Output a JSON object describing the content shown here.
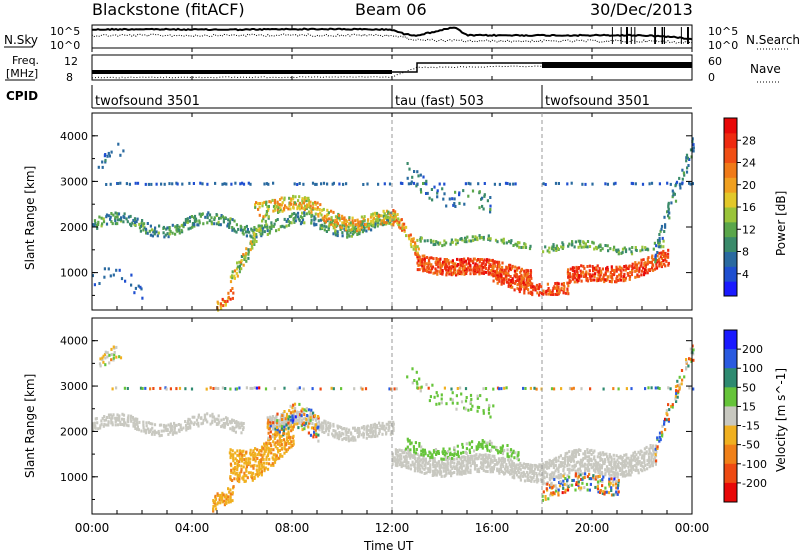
{
  "header": {
    "station": "Blackstone (fitACF)",
    "beam": "Beam 06",
    "date": "30/Dec/2013"
  },
  "left_labels": {
    "nsky": "N.Sky",
    "freq_line1": "Freq.",
    "freq_line2": "[MHz]",
    "cpid": "CPID"
  },
  "right_labels": {
    "nsearch": "N.Search",
    "nave": "Nave"
  },
  "noise_panel": {
    "left_ticks": [
      "10^5",
      "10^0"
    ],
    "right_ticks": [
      "10^5",
      "10^0"
    ]
  },
  "freq_panel": {
    "left_ticks": [
      "12",
      "8"
    ],
    "right_ticks": [
      "60",
      "0"
    ]
  },
  "cpid_segments": [
    {
      "label": "twofsound 3501",
      "start_h": 0,
      "end_h": 12
    },
    {
      "label": "tau (fast) 503",
      "start_h": 12,
      "end_h": 18
    },
    {
      "label": "twofsound 3501",
      "start_h": 18,
      "end_h": 24
    }
  ],
  "axes": {
    "ylabel": "Slant Range [km]",
    "xlabel": "Time UT",
    "y_ticks": [
      "1000",
      "2000",
      "3000",
      "4000"
    ],
    "x_ticks": [
      "00:00",
      "04:00",
      "08:00",
      "12:00",
      "16:00",
      "20:00",
      "00:00"
    ]
  },
  "power_colorbar": {
    "label": "Power [dB]",
    "ticks": [
      "4",
      "8",
      "12",
      "16",
      "20",
      "24",
      "28"
    ],
    "colors": [
      "#1a1aff",
      "#1f4fd0",
      "#2a6aa0",
      "#3a8a6a",
      "#5aa64a",
      "#9ac43a",
      "#e2c82a",
      "#f0a020",
      "#f07a18",
      "#f04e14",
      "#ee2a10",
      "#e80808"
    ]
  },
  "velocity_colorbar": {
    "label": "Velocity [m s^-1]",
    "ticks": [
      "200",
      "100",
      "50",
      "15",
      "-15",
      "-50",
      "-100",
      "-200"
    ],
    "colors": [
      "#1a1aff",
      "#2a5ae0",
      "#2e8a70",
      "#66c43a",
      "#c8c8c0",
      "#f0b020",
      "#f08018",
      "#ee4a12",
      "#e80808"
    ]
  },
  "chart_data": {
    "type": "heatmap",
    "x_range_h": [
      0,
      24
    ],
    "y_range_km": [
      180,
      4500
    ],
    "noise_nsky_trend": [
      [
        0,
        0.8
      ],
      [
        2,
        0.82
      ],
      [
        4,
        0.8
      ],
      [
        6,
        0.8
      ],
      [
        8,
        0.82
      ],
      [
        10,
        0.82
      ],
      [
        12,
        0.8
      ],
      [
        12.5,
        0.6
      ],
      [
        13,
        0.55
      ],
      [
        14.5,
        0.9
      ],
      [
        15,
        0.55
      ],
      [
        18,
        0.55
      ],
      [
        20,
        0.55
      ],
      [
        22,
        0.55
      ],
      [
        23,
        0.5
      ],
      [
        24,
        0.4
      ]
    ],
    "noise_nsearch_trend": [
      [
        0,
        0.55
      ],
      [
        4,
        0.55
      ],
      [
        8,
        0.56
      ],
      [
        12,
        0.55
      ],
      [
        13,
        0.35
      ],
      [
        15,
        0.3
      ],
      [
        18,
        0.3
      ],
      [
        22,
        0.3
      ],
      [
        24,
        0.25
      ]
    ],
    "nave_trend": [
      [
        0,
        0.1
      ],
      [
        12,
        0.12
      ],
      [
        13,
        0.5
      ],
      [
        18,
        0.55
      ],
      [
        24,
        0.55
      ]
    ],
    "power_structures": [
      {
        "t0": 0.0,
        "t1": 12.0,
        "r_start": 2100,
        "r_end": 2100,
        "wobble": 150,
        "thick": 260,
        "density": 0.5,
        "dB_min": 6,
        "dB_max": 14
      },
      {
        "t0": 0.2,
        "t1": 1.2,
        "r_start": 3300,
        "r_end": 3600,
        "wobble": 200,
        "thick": 300,
        "density": 0.25,
        "dB_min": 4,
        "dB_max": 9
      },
      {
        "t0": 0.5,
        "t1": 24.0,
        "r_start": 3000,
        "r_end": 3000,
        "wobble": 0,
        "thick": 40,
        "density": 0.35,
        "dB_min": 4,
        "dB_max": 8
      },
      {
        "t0": 5.5,
        "t1": 7.0,
        "r_start": 900,
        "r_end": 2400,
        "wobble": 100,
        "thick": 320,
        "density": 0.55,
        "dB_min": 10,
        "dB_max": 22
      },
      {
        "t0": 6.5,
        "t1": 12.0,
        "r_start": 2600,
        "r_end": 2100,
        "wobble": 150,
        "thick": 320,
        "density": 0.6,
        "dB_min": 12,
        "dB_max": 24
      },
      {
        "t0": 5.0,
        "t1": 5.6,
        "r_start": 250,
        "r_end": 600,
        "wobble": 60,
        "thick": 250,
        "density": 0.6,
        "dB_min": 16,
        "dB_max": 28
      },
      {
        "t0": 12.0,
        "t1": 13.0,
        "r_start": 2300,
        "r_end": 1500,
        "wobble": 80,
        "thick": 300,
        "density": 0.6,
        "dB_min": 14,
        "dB_max": 26
      },
      {
        "t0": 13.0,
        "t1": 17.5,
        "r_start": 1300,
        "r_end": 1000,
        "wobble": 60,
        "thick": 360,
        "density": 0.8,
        "dB_min": 22,
        "dB_max": 30
      },
      {
        "t0": 13.0,
        "t1": 17.5,
        "r_start": 1800,
        "r_end": 1700,
        "wobble": 80,
        "thick": 120,
        "density": 0.5,
        "dB_min": 8,
        "dB_max": 16
      },
      {
        "t0": 16.0,
        "t1": 19.0,
        "r_start": 900,
        "r_end": 650,
        "wobble": 80,
        "thick": 260,
        "density": 0.6,
        "dB_min": 22,
        "dB_max": 30
      },
      {
        "t0": 19.0,
        "t1": 23.0,
        "r_start": 900,
        "r_end": 1300,
        "wobble": 80,
        "thick": 360,
        "density": 0.7,
        "dB_min": 22,
        "dB_max": 30
      },
      {
        "t0": 18.0,
        "t1": 22.8,
        "r_start": 1600,
        "r_end": 1600,
        "wobble": 80,
        "thick": 160,
        "density": 0.45,
        "dB_min": 8,
        "dB_max": 16
      },
      {
        "t0": 22.5,
        "t1": 24.0,
        "r_start": 1400,
        "r_end": 3800,
        "wobble": 150,
        "thick": 400,
        "density": 0.4,
        "dB_min": 4,
        "dB_max": 12
      },
      {
        "t0": 12.5,
        "t1": 16.0,
        "r_start": 3200,
        "r_end": 2400,
        "wobble": 150,
        "thick": 400,
        "density": 0.15,
        "dB_min": 4,
        "dB_max": 12
      },
      {
        "t0": 0.0,
        "t1": 2.0,
        "r_start": 900,
        "r_end": 700,
        "wobble": 150,
        "thick": 400,
        "density": 0.12,
        "dB_min": 4,
        "dB_max": 8
      }
    ],
    "velocity_structures": [
      {
        "t0": 0.0,
        "t1": 6.0,
        "r_start": 2200,
        "r_end": 2200,
        "wobble": 120,
        "thick": 260,
        "density": 0.6,
        "v_min": -15,
        "v_max": 15
      },
      {
        "t0": 0.3,
        "t1": 1.2,
        "r_start": 3500,
        "r_end": 3700,
        "wobble": 150,
        "thick": 350,
        "density": 0.3,
        "v_min": -100,
        "v_max": 60
      },
      {
        "t0": 0.5,
        "t1": 24.0,
        "r_start": 3000,
        "r_end": 3000,
        "wobble": 0,
        "thick": 40,
        "density": 0.35,
        "v_min": -200,
        "v_max": 200
      },
      {
        "t0": 5.5,
        "t1": 8.0,
        "r_start": 1300,
        "r_end": 1900,
        "wobble": 200,
        "thick": 700,
        "density": 0.6,
        "v_min": -100,
        "v_max": -30
      },
      {
        "t0": 4.8,
        "t1": 5.6,
        "r_start": 400,
        "r_end": 700,
        "wobble": 60,
        "thick": 350,
        "density": 0.6,
        "v_min": -100,
        "v_max": -40
      },
      {
        "t0": 7.0,
        "t1": 12.0,
        "r_start": 2300,
        "r_end": 2000,
        "wobble": 120,
        "thick": 300,
        "density": 0.6,
        "v_min": -15,
        "v_max": 15
      },
      {
        "t0": 7.0,
        "t1": 9.0,
        "r_start": 2200,
        "r_end": 2000,
        "wobble": 300,
        "thick": 600,
        "density": 0.4,
        "v_min": -200,
        "v_max": 200
      },
      {
        "t0": 12.0,
        "t1": 18.0,
        "r_start": 1400,
        "r_end": 1200,
        "wobble": 80,
        "thick": 400,
        "density": 0.75,
        "v_min": -15,
        "v_max": 15
      },
      {
        "t0": 12.5,
        "t1": 17.0,
        "r_start": 1700,
        "r_end": 1600,
        "wobble": 120,
        "thick": 250,
        "density": 0.45,
        "v_min": 20,
        "v_max": 70
      },
      {
        "t0": 18.0,
        "t1": 22.5,
        "r_start": 1200,
        "r_end": 1500,
        "wobble": 120,
        "thick": 500,
        "density": 0.7,
        "v_min": -15,
        "v_max": 15
      },
      {
        "t0": 18.0,
        "t1": 21.0,
        "r_start": 800,
        "r_end": 900,
        "wobble": 100,
        "thick": 400,
        "density": 0.45,
        "v_min": -200,
        "v_max": 200
      },
      {
        "t0": 22.5,
        "t1": 24.0,
        "r_start": 1500,
        "r_end": 3800,
        "wobble": 150,
        "thick": 400,
        "density": 0.35,
        "v_min": -200,
        "v_max": 200
      },
      {
        "t0": 12.5,
        "t1": 16.0,
        "r_start": 3300,
        "r_end": 2400,
        "wobble": 150,
        "thick": 400,
        "density": 0.15,
        "v_min": 20,
        "v_max": 80
      }
    ]
  }
}
